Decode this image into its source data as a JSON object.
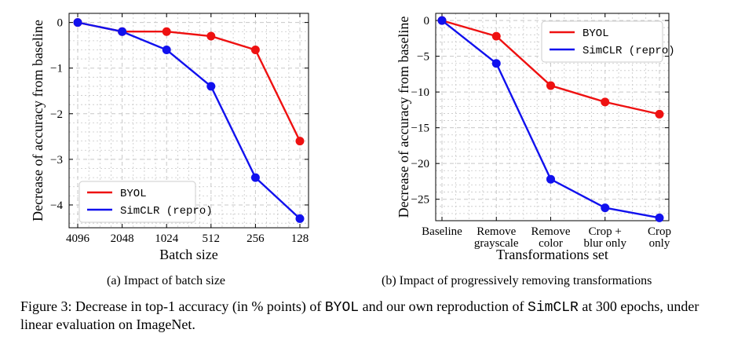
{
  "figure": {
    "caption": {
      "label": "Figure 3:",
      "part1": "Decrease in top-1 accuracy (in % points) of",
      "byol": "BYOL",
      "part2": "and our own reproduction of",
      "simclr": "SimCLR",
      "part3": "at 300 epochs, under linear evaluation on ImageNet."
    },
    "subcaptions": {
      "a": "(a) Impact of batch size",
      "b": "(b) Impact of progressively removing transformations"
    }
  },
  "colors": {
    "byol": "#ee1111",
    "simclr": "#1111ee",
    "grid": "#c8c8c8"
  },
  "chart_data": [
    {
      "type": "line",
      "categories": [
        "4096",
        "2048",
        "1024",
        "512",
        "256",
        "128"
      ],
      "xlabel": "Batch size",
      "ylabel": "Decrease of accuracy from baseline",
      "ylim": [
        -4.5,
        0.2
      ],
      "yticks": [
        0,
        -1,
        -2,
        -3,
        -4
      ],
      "ytick_labels": [
        "0",
        "−1",
        "−2",
        "−3",
        "−4"
      ],
      "grid": true,
      "legend_position": "bottom-left",
      "series": [
        {
          "name": "BYOL",
          "color": "#ee1111",
          "values": [
            0,
            -0.2,
            -0.2,
            -0.3,
            -0.6,
            -2.6
          ]
        },
        {
          "name": "SimCLR (repro)",
          "color": "#1111ee",
          "values": [
            0,
            -0.2,
            -0.6,
            -1.4,
            -3.4,
            -4.3
          ]
        }
      ]
    },
    {
      "type": "line",
      "categories": [
        "Baseline",
        "Remove grayscale",
        "Remove color",
        "Crop + blur only",
        "Crop only"
      ],
      "category_lines": [
        [
          "Baseline"
        ],
        [
          "Remove",
          "grayscale"
        ],
        [
          "Remove",
          "color"
        ],
        [
          "Crop +",
          "blur only"
        ],
        [
          "Crop",
          "only"
        ]
      ],
      "xlabel": "Transformations set",
      "ylabel": "Decrease of accuracy from baseline",
      "ylim": [
        -28,
        1
      ],
      "yticks": [
        0,
        -5,
        -10,
        -15,
        -20,
        -25
      ],
      "ytick_labels": [
        "0",
        "−5",
        "−10",
        "−15",
        "−20",
        "−25"
      ],
      "grid": true,
      "legend_position": "top-right",
      "series": [
        {
          "name": "BYOL",
          "color": "#ee1111",
          "values": [
            0,
            -2.2,
            -9.1,
            -11.4,
            -13.1
          ]
        },
        {
          "name": "SimCLR (repro)",
          "color": "#1111ee",
          "values": [
            0,
            -6,
            -22.2,
            -26.2,
            -27.6
          ]
        }
      ]
    }
  ]
}
